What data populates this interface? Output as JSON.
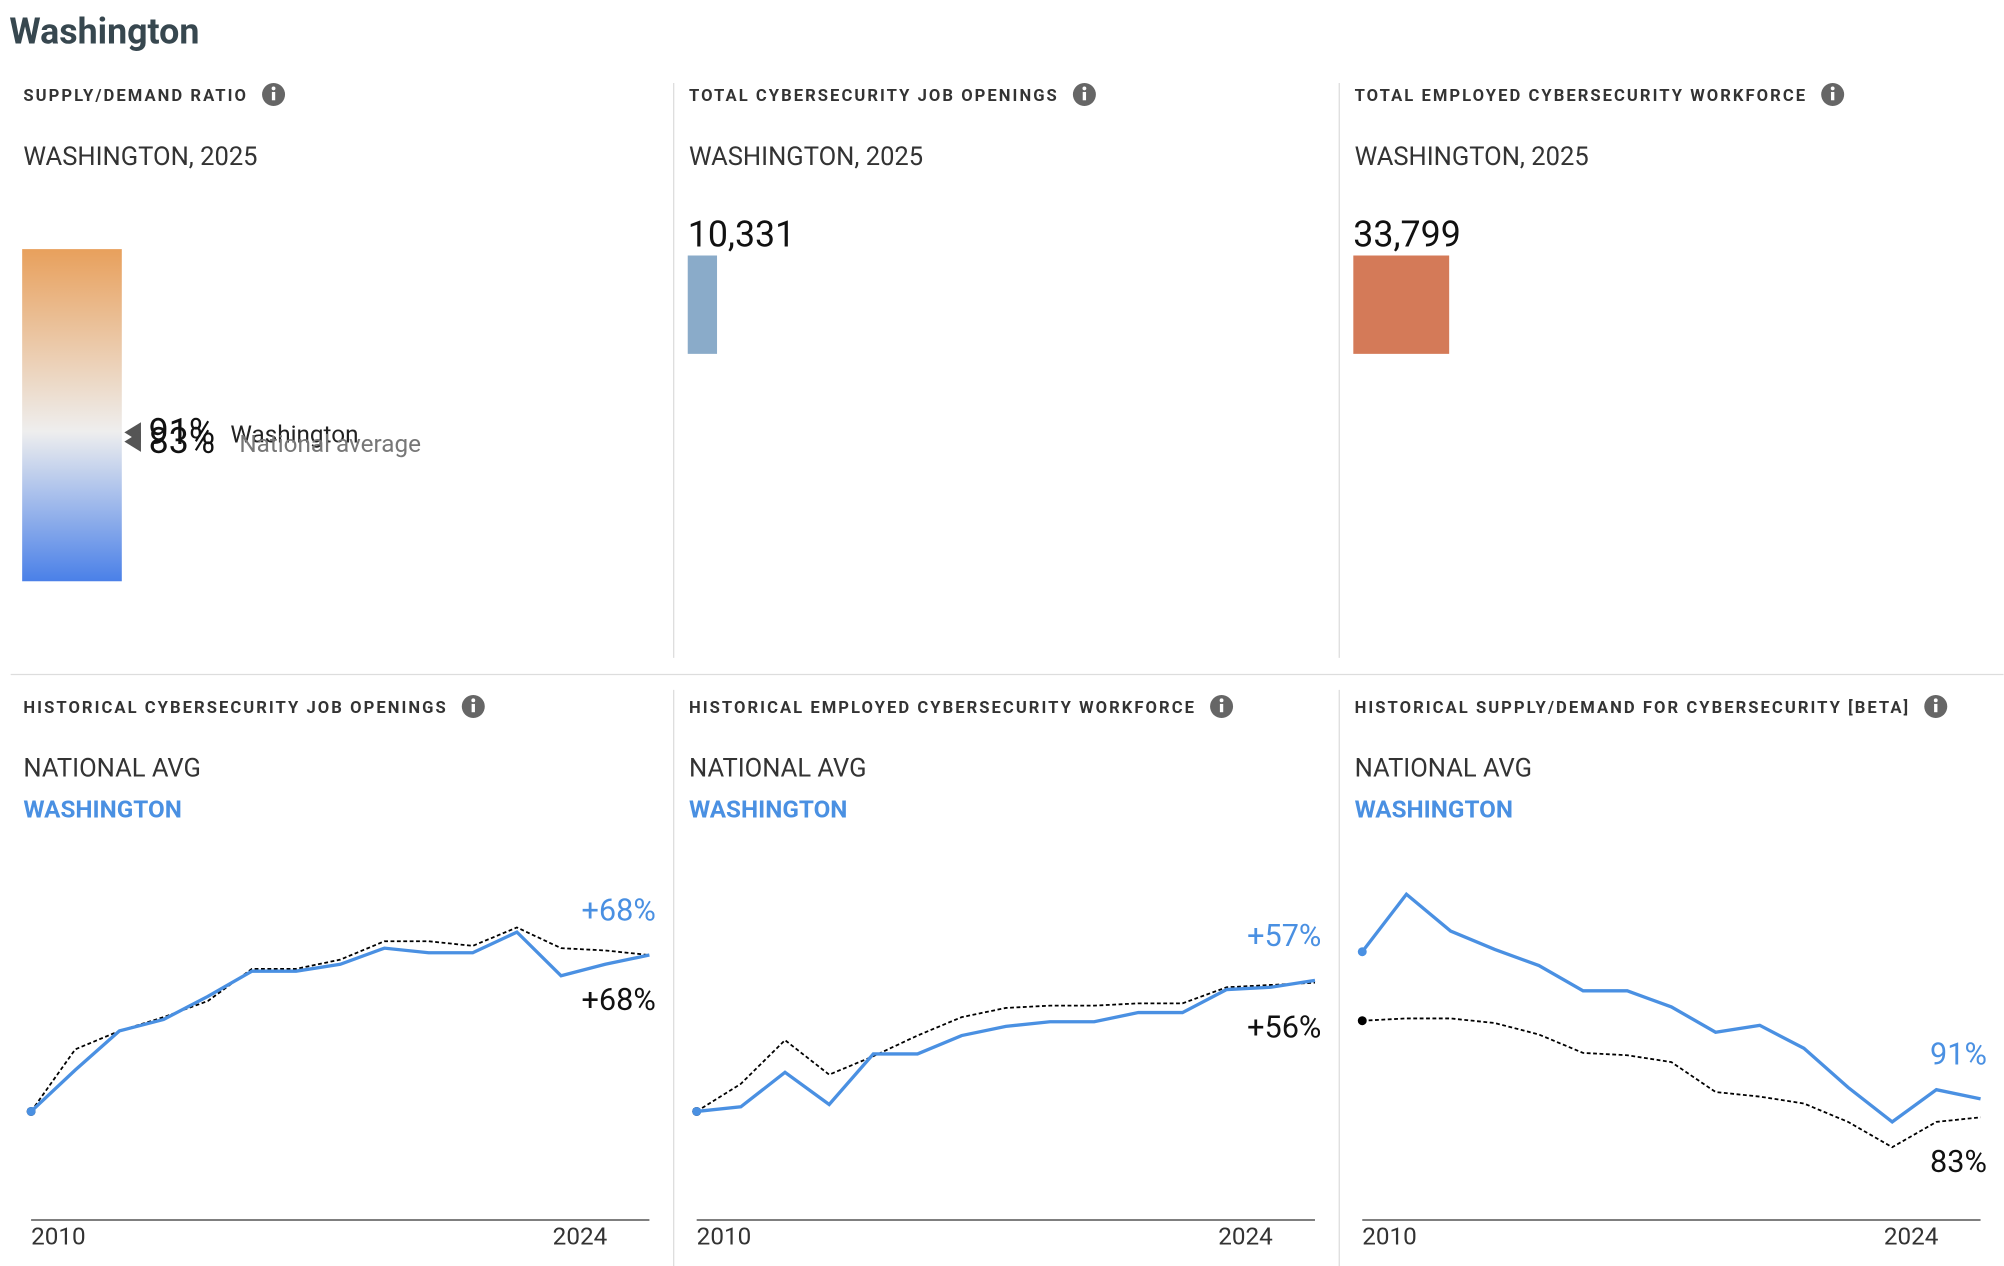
{
  "title": "Washington",
  "cards": [
    {
      "title": "SUPPLY/DEMAND RATIO",
      "subtitle": "WASHINGTON, 2025",
      "markers": [
        {
          "value": 91,
          "value_label": "91%",
          "name": "Washington"
        },
        {
          "value": 83,
          "value_label": "83%",
          "name": "National average"
        }
      ]
    },
    {
      "title": "TOTAL CYBERSECURITY JOB OPENINGS",
      "subtitle": "WASHINGTON, 2025",
      "value": 10331,
      "value_label": "10,331",
      "color": "#8aabc9"
    },
    {
      "title": "TOTAL EMPLOYED CYBERSECURITY WORKFORCE",
      "subtitle": "WASHINGTON, 2025",
      "value": 33799,
      "value_label": "33,799",
      "color": "#d47a58"
    }
  ],
  "chart_data": [
    {
      "type": "line",
      "title": "HISTORICAL CYBERSECURITY JOB OPENINGS",
      "x": [
        2010,
        2011,
        2012,
        2013,
        2014,
        2015,
        2016,
        2017,
        2018,
        2019,
        2020,
        2021,
        2022,
        2023,
        2024
      ],
      "xticks": [
        2010,
        2024
      ],
      "series": [
        {
          "name": "NATIONAL AVG",
          "color": "#000000",
          "values": [
            0,
            27,
            35,
            41,
            48,
            62,
            62,
            66,
            74,
            74,
            72,
            80,
            71,
            70,
            68
          ],
          "value_labels": [
            null,
            null,
            null,
            null,
            null,
            null,
            null,
            null,
            null,
            null,
            null,
            null,
            null,
            null,
            "+68%"
          ]
        },
        {
          "name": "WASHINGTON",
          "color": "#4a90e2",
          "values": [
            0,
            18,
            35,
            40,
            50,
            61,
            61,
            64,
            71,
            69,
            69,
            78,
            59,
            64,
            68
          ],
          "value_labels": [
            null,
            null,
            null,
            null,
            null,
            null,
            null,
            null,
            null,
            null,
            null,
            null,
            null,
            null,
            "+68%"
          ]
        }
      ]
    },
    {
      "type": "line",
      "title": "HISTORICAL EMPLOYED CYBERSECURITY WORKFORCE",
      "x": [
        2010,
        2011,
        2012,
        2013,
        2014,
        2015,
        2016,
        2017,
        2018,
        2019,
        2020,
        2021,
        2022,
        2023,
        2024
      ],
      "xticks": [
        2010,
        2024
      ],
      "series": [
        {
          "name": "NATIONAL AVG",
          "color": "#000000",
          "values": [
            0,
            12,
            31,
            16,
            24,
            33,
            41,
            45,
            46,
            46,
            47,
            47,
            54,
            55,
            56
          ],
          "value_labels": [
            null,
            null,
            null,
            null,
            null,
            null,
            null,
            null,
            null,
            null,
            null,
            null,
            null,
            null,
            "+56%"
          ]
        },
        {
          "name": "WASHINGTON",
          "color": "#4a90e2",
          "values": [
            0,
            2,
            17,
            3,
            25,
            25,
            33,
            37,
            39,
            39,
            43,
            43,
            53,
            54,
            57
          ],
          "value_labels": [
            null,
            null,
            null,
            null,
            null,
            null,
            null,
            null,
            null,
            null,
            null,
            null,
            null,
            null,
            "+57%"
          ]
        }
      ]
    },
    {
      "type": "line",
      "title": "HISTORICAL SUPPLY/DEMAND FOR CYBERSECURITY [BETA]",
      "x": [
        2010,
        2011,
        2012,
        2013,
        2014,
        2015,
        2016,
        2017,
        2018,
        2019,
        2020,
        2021,
        2022,
        2023,
        2024
      ],
      "xticks": [
        2010,
        2024
      ],
      "series": [
        {
          "name": "NATIONAL AVG",
          "color": "#000000",
          "values": [
            125,
            126,
            126,
            124,
            119,
            111,
            110,
            107,
            94,
            92,
            89,
            81,
            70,
            81,
            83
          ],
          "value_labels": [
            null,
            null,
            null,
            null,
            null,
            null,
            null,
            null,
            null,
            null,
            null,
            null,
            null,
            null,
            "83%"
          ]
        },
        {
          "name": "WASHINGTON",
          "color": "#4a90e2",
          "values": [
            155,
            180,
            164,
            156,
            149,
            138,
            138,
            131,
            120,
            123,
            113,
            96,
            81,
            95,
            91
          ],
          "value_labels": [
            null,
            null,
            null,
            null,
            null,
            null,
            null,
            null,
            null,
            null,
            null,
            null,
            null,
            null,
            "91%"
          ]
        }
      ]
    }
  ]
}
